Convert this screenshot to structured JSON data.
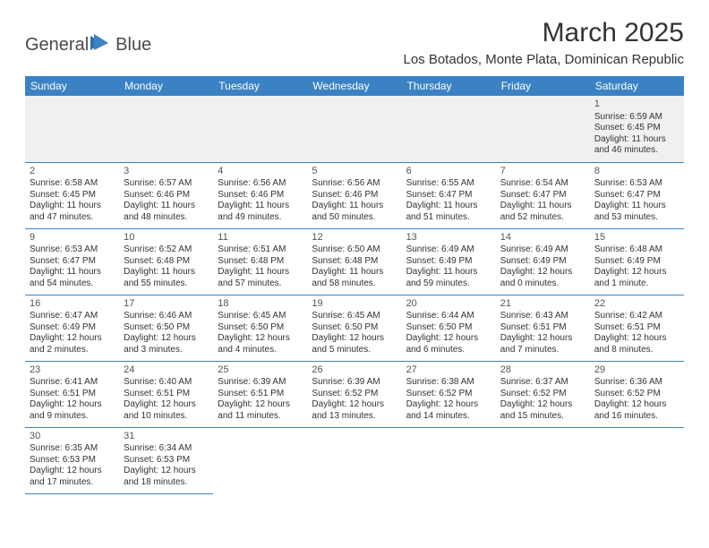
{
  "logo": {
    "part1": "General",
    "part2": "Blue"
  },
  "title": "March 2025",
  "location": "Los Botados, Monte Plata, Dominican Republic",
  "dayNames": [
    "Sunday",
    "Monday",
    "Tuesday",
    "Wednesday",
    "Thursday",
    "Friday",
    "Saturday"
  ],
  "colors": {
    "headerBar": "#3b82c4",
    "background": "#ffffff",
    "emptyCell": "#f0f0f0",
    "text": "#333333"
  },
  "weeks": [
    [
      null,
      null,
      null,
      null,
      null,
      null,
      {
        "n": "1",
        "sr": "Sunrise: 6:59 AM",
        "ss": "Sunset: 6:45 PM",
        "dl": "Daylight: 11 hours and 46 minutes."
      }
    ],
    [
      {
        "n": "2",
        "sr": "Sunrise: 6:58 AM",
        "ss": "Sunset: 6:45 PM",
        "dl": "Daylight: 11 hours and 47 minutes."
      },
      {
        "n": "3",
        "sr": "Sunrise: 6:57 AM",
        "ss": "Sunset: 6:46 PM",
        "dl": "Daylight: 11 hours and 48 minutes."
      },
      {
        "n": "4",
        "sr": "Sunrise: 6:56 AM",
        "ss": "Sunset: 6:46 PM",
        "dl": "Daylight: 11 hours and 49 minutes."
      },
      {
        "n": "5",
        "sr": "Sunrise: 6:56 AM",
        "ss": "Sunset: 6:46 PM",
        "dl": "Daylight: 11 hours and 50 minutes."
      },
      {
        "n": "6",
        "sr": "Sunrise: 6:55 AM",
        "ss": "Sunset: 6:47 PM",
        "dl": "Daylight: 11 hours and 51 minutes."
      },
      {
        "n": "7",
        "sr": "Sunrise: 6:54 AM",
        "ss": "Sunset: 6:47 PM",
        "dl": "Daylight: 11 hours and 52 minutes."
      },
      {
        "n": "8",
        "sr": "Sunrise: 6:53 AM",
        "ss": "Sunset: 6:47 PM",
        "dl": "Daylight: 11 hours and 53 minutes."
      }
    ],
    [
      {
        "n": "9",
        "sr": "Sunrise: 6:53 AM",
        "ss": "Sunset: 6:47 PM",
        "dl": "Daylight: 11 hours and 54 minutes."
      },
      {
        "n": "10",
        "sr": "Sunrise: 6:52 AM",
        "ss": "Sunset: 6:48 PM",
        "dl": "Daylight: 11 hours and 55 minutes."
      },
      {
        "n": "11",
        "sr": "Sunrise: 6:51 AM",
        "ss": "Sunset: 6:48 PM",
        "dl": "Daylight: 11 hours and 57 minutes."
      },
      {
        "n": "12",
        "sr": "Sunrise: 6:50 AM",
        "ss": "Sunset: 6:48 PM",
        "dl": "Daylight: 11 hours and 58 minutes."
      },
      {
        "n": "13",
        "sr": "Sunrise: 6:49 AM",
        "ss": "Sunset: 6:49 PM",
        "dl": "Daylight: 11 hours and 59 minutes."
      },
      {
        "n": "14",
        "sr": "Sunrise: 6:49 AM",
        "ss": "Sunset: 6:49 PM",
        "dl": "Daylight: 12 hours and 0 minutes."
      },
      {
        "n": "15",
        "sr": "Sunrise: 6:48 AM",
        "ss": "Sunset: 6:49 PM",
        "dl": "Daylight: 12 hours and 1 minute."
      }
    ],
    [
      {
        "n": "16",
        "sr": "Sunrise: 6:47 AM",
        "ss": "Sunset: 6:49 PM",
        "dl": "Daylight: 12 hours and 2 minutes."
      },
      {
        "n": "17",
        "sr": "Sunrise: 6:46 AM",
        "ss": "Sunset: 6:50 PM",
        "dl": "Daylight: 12 hours and 3 minutes."
      },
      {
        "n": "18",
        "sr": "Sunrise: 6:45 AM",
        "ss": "Sunset: 6:50 PM",
        "dl": "Daylight: 12 hours and 4 minutes."
      },
      {
        "n": "19",
        "sr": "Sunrise: 6:45 AM",
        "ss": "Sunset: 6:50 PM",
        "dl": "Daylight: 12 hours and 5 minutes."
      },
      {
        "n": "20",
        "sr": "Sunrise: 6:44 AM",
        "ss": "Sunset: 6:50 PM",
        "dl": "Daylight: 12 hours and 6 minutes."
      },
      {
        "n": "21",
        "sr": "Sunrise: 6:43 AM",
        "ss": "Sunset: 6:51 PM",
        "dl": "Daylight: 12 hours and 7 minutes."
      },
      {
        "n": "22",
        "sr": "Sunrise: 6:42 AM",
        "ss": "Sunset: 6:51 PM",
        "dl": "Daylight: 12 hours and 8 minutes."
      }
    ],
    [
      {
        "n": "23",
        "sr": "Sunrise: 6:41 AM",
        "ss": "Sunset: 6:51 PM",
        "dl": "Daylight: 12 hours and 9 minutes."
      },
      {
        "n": "24",
        "sr": "Sunrise: 6:40 AM",
        "ss": "Sunset: 6:51 PM",
        "dl": "Daylight: 12 hours and 10 minutes."
      },
      {
        "n": "25",
        "sr": "Sunrise: 6:39 AM",
        "ss": "Sunset: 6:51 PM",
        "dl": "Daylight: 12 hours and 11 minutes."
      },
      {
        "n": "26",
        "sr": "Sunrise: 6:39 AM",
        "ss": "Sunset: 6:52 PM",
        "dl": "Daylight: 12 hours and 13 minutes."
      },
      {
        "n": "27",
        "sr": "Sunrise: 6:38 AM",
        "ss": "Sunset: 6:52 PM",
        "dl": "Daylight: 12 hours and 14 minutes."
      },
      {
        "n": "28",
        "sr": "Sunrise: 6:37 AM",
        "ss": "Sunset: 6:52 PM",
        "dl": "Daylight: 12 hours and 15 minutes."
      },
      {
        "n": "29",
        "sr": "Sunrise: 6:36 AM",
        "ss": "Sunset: 6:52 PM",
        "dl": "Daylight: 12 hours and 16 minutes."
      }
    ],
    [
      {
        "n": "30",
        "sr": "Sunrise: 6:35 AM",
        "ss": "Sunset: 6:53 PM",
        "dl": "Daylight: 12 hours and 17 minutes."
      },
      {
        "n": "31",
        "sr": "Sunrise: 6:34 AM",
        "ss": "Sunset: 6:53 PM",
        "dl": "Daylight: 12 hours and 18 minutes."
      },
      null,
      null,
      null,
      null,
      null
    ]
  ]
}
